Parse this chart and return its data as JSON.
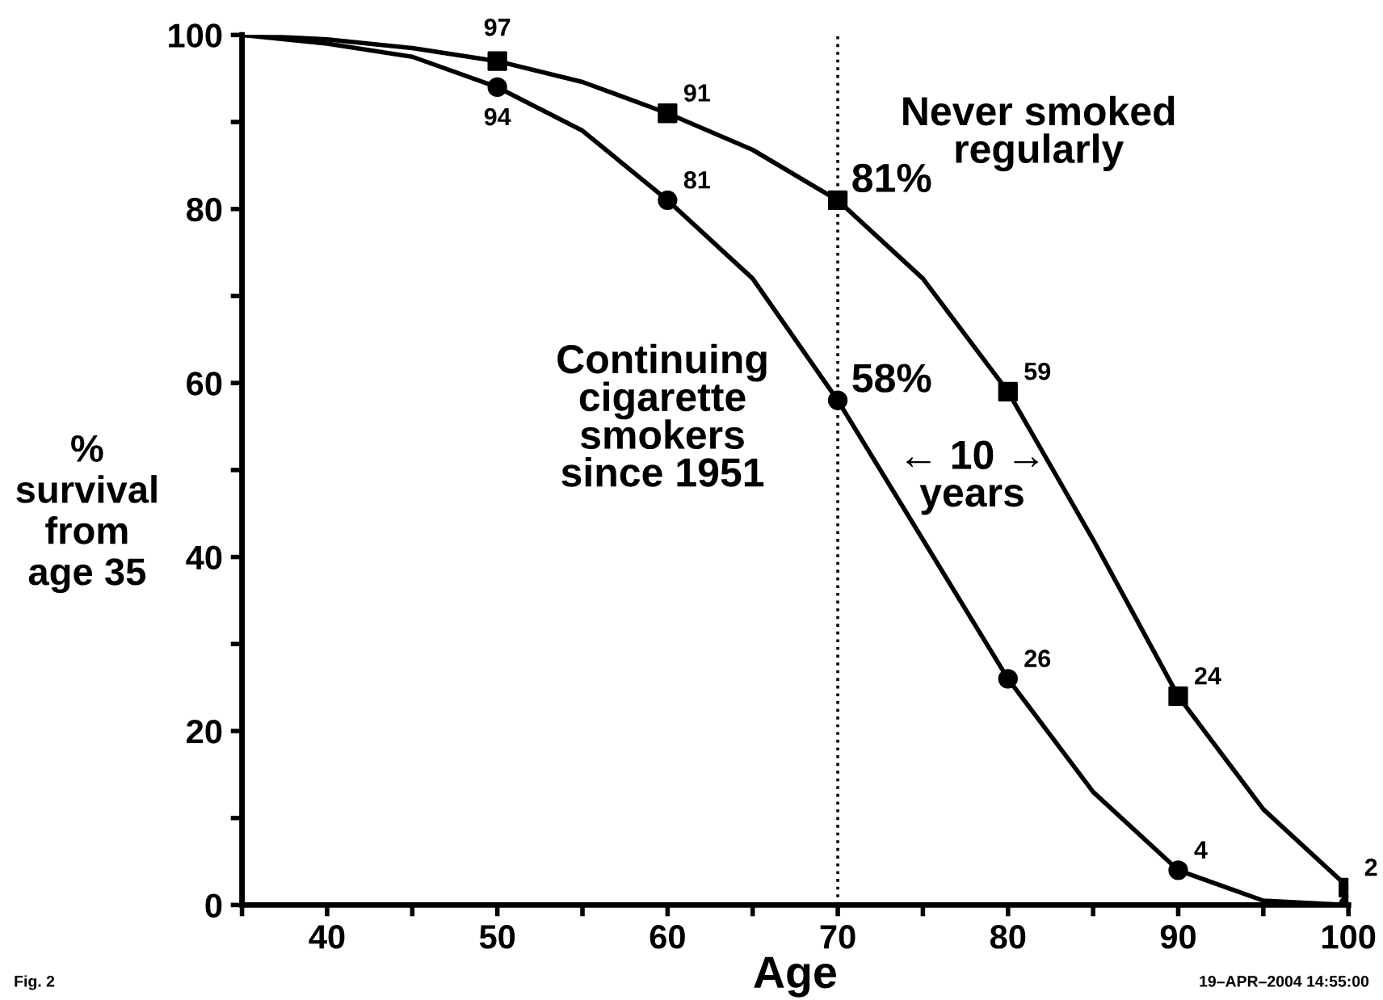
{
  "chart_data": {
    "type": "line",
    "xlabel": "Age",
    "ylabel": "%\nsurvival\nfrom\nage 35",
    "xlim": [
      35,
      100
    ],
    "ylim": [
      0,
      100
    ],
    "xticks": [
      {
        "value": 35,
        "label": null
      },
      40,
      {
        "value": 45,
        "label": null
      },
      50,
      {
        "value": 55,
        "label": null
      },
      60,
      {
        "value": 65,
        "label": null
      },
      70,
      {
        "value": 75,
        "label": null
      },
      80,
      {
        "value": 85,
        "label": null
      },
      90,
      {
        "value": 95,
        "label": null
      },
      100
    ],
    "yticks": [
      0,
      {
        "value": 10,
        "label": null
      },
      20,
      {
        "value": 30,
        "label": null
      },
      40,
      {
        "value": 50,
        "label": null
      },
      60,
      {
        "value": 70,
        "label": null
      },
      80,
      {
        "value": 90,
        "label": null
      },
      100
    ],
    "grid": false,
    "legend": false,
    "line_style": "solid",
    "series": [
      {
        "color": "#000000",
        "marker": "none",
        "x": [
          35,
          40,
          45,
          50,
          55,
          60,
          65,
          70,
          75,
          80,
          85,
          90,
          95,
          100
        ],
        "values": [
          100,
          99.5,
          98.5,
          97,
          94.6,
          91,
          86.8,
          81,
          72,
          59,
          42,
          24,
          11,
          2
        ]
      },
      {
        "color": "#000000",
        "marker": "none",
        "x": [
          35,
          40,
          45,
          50,
          55,
          60,
          65,
          70,
          75,
          80,
          85,
          90,
          95,
          100
        ],
        "values": [
          100,
          99,
          97.5,
          94,
          89,
          81,
          72,
          58,
          42,
          26,
          13,
          4,
          0.5,
          0
        ]
      },
      {
        "type": "scatter",
        "color": "#000000",
        "marker": "square",
        "x": [
          50,
          60,
          70,
          80,
          90,
          100
        ],
        "values": [
          97,
          91,
          81,
          59,
          24,
          2
        ],
        "value_labels": [
          "97",
          "91",
          null,
          "59",
          "24",
          "2"
        ]
      },
      {
        "type": "scatter",
        "color": "#000000",
        "marker": "circle",
        "x": [
          50,
          60,
          70,
          80,
          90,
          100
        ],
        "values": [
          94,
          81,
          58,
          26,
          4,
          0
        ],
        "value_labels": [
          "94",
          "81",
          null,
          "26",
          "4",
          null
        ]
      }
    ],
    "ref_lines": [
      {
        "axis": "x",
        "value": 70,
        "line_style": "dotted",
        "color": "#000000"
      }
    ],
    "annotations": [
      {
        "text": "81%",
        "x": 70,
        "y": 81
      },
      {
        "text": "58%",
        "x": 70,
        "y": 58
      },
      "Never smoked\nregularly",
      "Continuing\ncigarette\nsmokers\nsince 1951",
      "← 10 →\nyears",
      "Fig. 2",
      "19–APR–2004 14:55:00"
    ]
  }
}
